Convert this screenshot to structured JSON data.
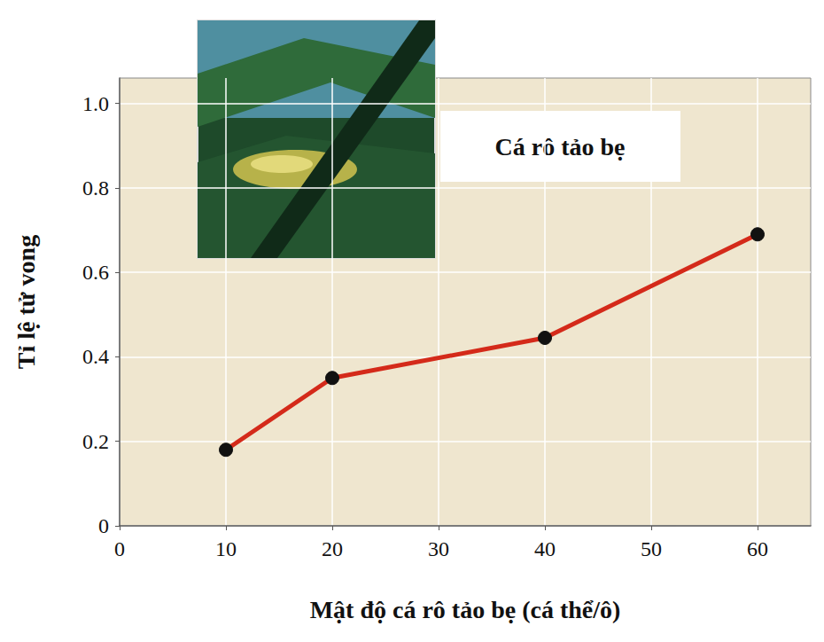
{
  "chart_data": {
    "type": "line",
    "annotation": "Cá rô tảo bẹ",
    "x_label": "Mật độ cá rô tảo bẹ (cá thể/ô)",
    "y_label": "Tỉ lệ tử vong",
    "x": [
      10,
      20,
      40,
      60
    ],
    "values": [
      0.18,
      0.35,
      0.445,
      0.69
    ],
    "color": "#d42a1a",
    "marker": "circle",
    "line_style": "solid",
    "xlim": [
      0,
      65
    ],
    "xticks": [
      0,
      10,
      20,
      30,
      40,
      50,
      60
    ],
    "ylim": [
      0,
      1.06
    ],
    "yticks": [
      0,
      0.2,
      0.4,
      0.6,
      0.8,
      {
        "value": 1,
        "label": "1.0"
      }
    ],
    "grid": true
  }
}
